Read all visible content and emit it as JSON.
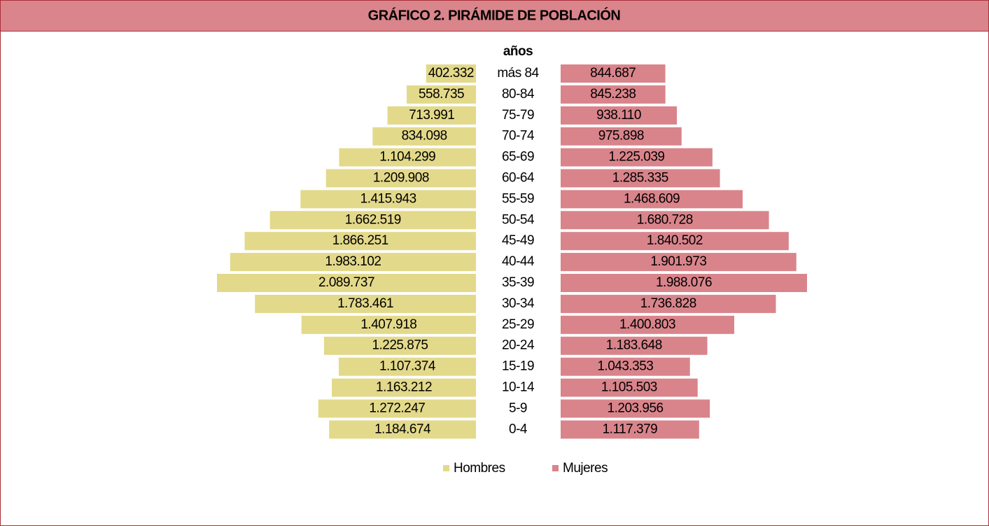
{
  "chart_data": {
    "type": "pyramid",
    "title": "GRÁFICO 2. PIRÁMIDE DE POBLACIÓN",
    "axis_title": "años",
    "categories": [
      "más 84",
      "80-84",
      "75-79",
      "70-74",
      "65-69",
      "60-64",
      "55-59",
      "50-54",
      "45-49",
      "40-44",
      "35-39",
      "30-34",
      "25-29",
      "20-24",
      "15-19",
      "10-14",
      "5-9",
      "0-4"
    ],
    "series": [
      {
        "name": "Hombres",
        "color": "#e3d98a",
        "values": [
          402332,
          558735,
          713991,
          834098,
          1104299,
          1209908,
          1415943,
          1662519,
          1866251,
          1983102,
          2089737,
          1783461,
          1407918,
          1225875,
          1107374,
          1163212,
          1272247,
          1184674
        ],
        "value_labels": [
          "402.332",
          "558.735",
          "713.991",
          "834.098",
          "1.104.299",
          "1.209.908",
          "1.415.943",
          "1.662.519",
          "1.866.251",
          "1.983.102",
          "2.089.737",
          "1.783.461",
          "1.407.918",
          "1.225.875",
          "1.107.374",
          "1.163.212",
          "1.272.247",
          "1.184.674"
        ]
      },
      {
        "name": "Mujeres",
        "color": "#d9848b",
        "values": [
          844687,
          845238,
          938110,
          975898,
          1225039,
          1285335,
          1468609,
          1680728,
          1840502,
          1901973,
          1988076,
          1736828,
          1400803,
          1183648,
          1043353,
          1105503,
          1203956,
          1117379
        ],
        "value_labels": [
          "844.687",
          "845.238",
          "938.110",
          "975.898",
          "1.225.039",
          "1.285.335",
          "1.468.609",
          "1.680.728",
          "1.840.502",
          "1.901.973",
          "1.988.076",
          "1.736.828",
          "1.400.803",
          "1.183.648",
          "1.043.353",
          "1.105.503",
          "1.203.956",
          "1.117.379"
        ]
      }
    ],
    "legend": "bottom"
  }
}
